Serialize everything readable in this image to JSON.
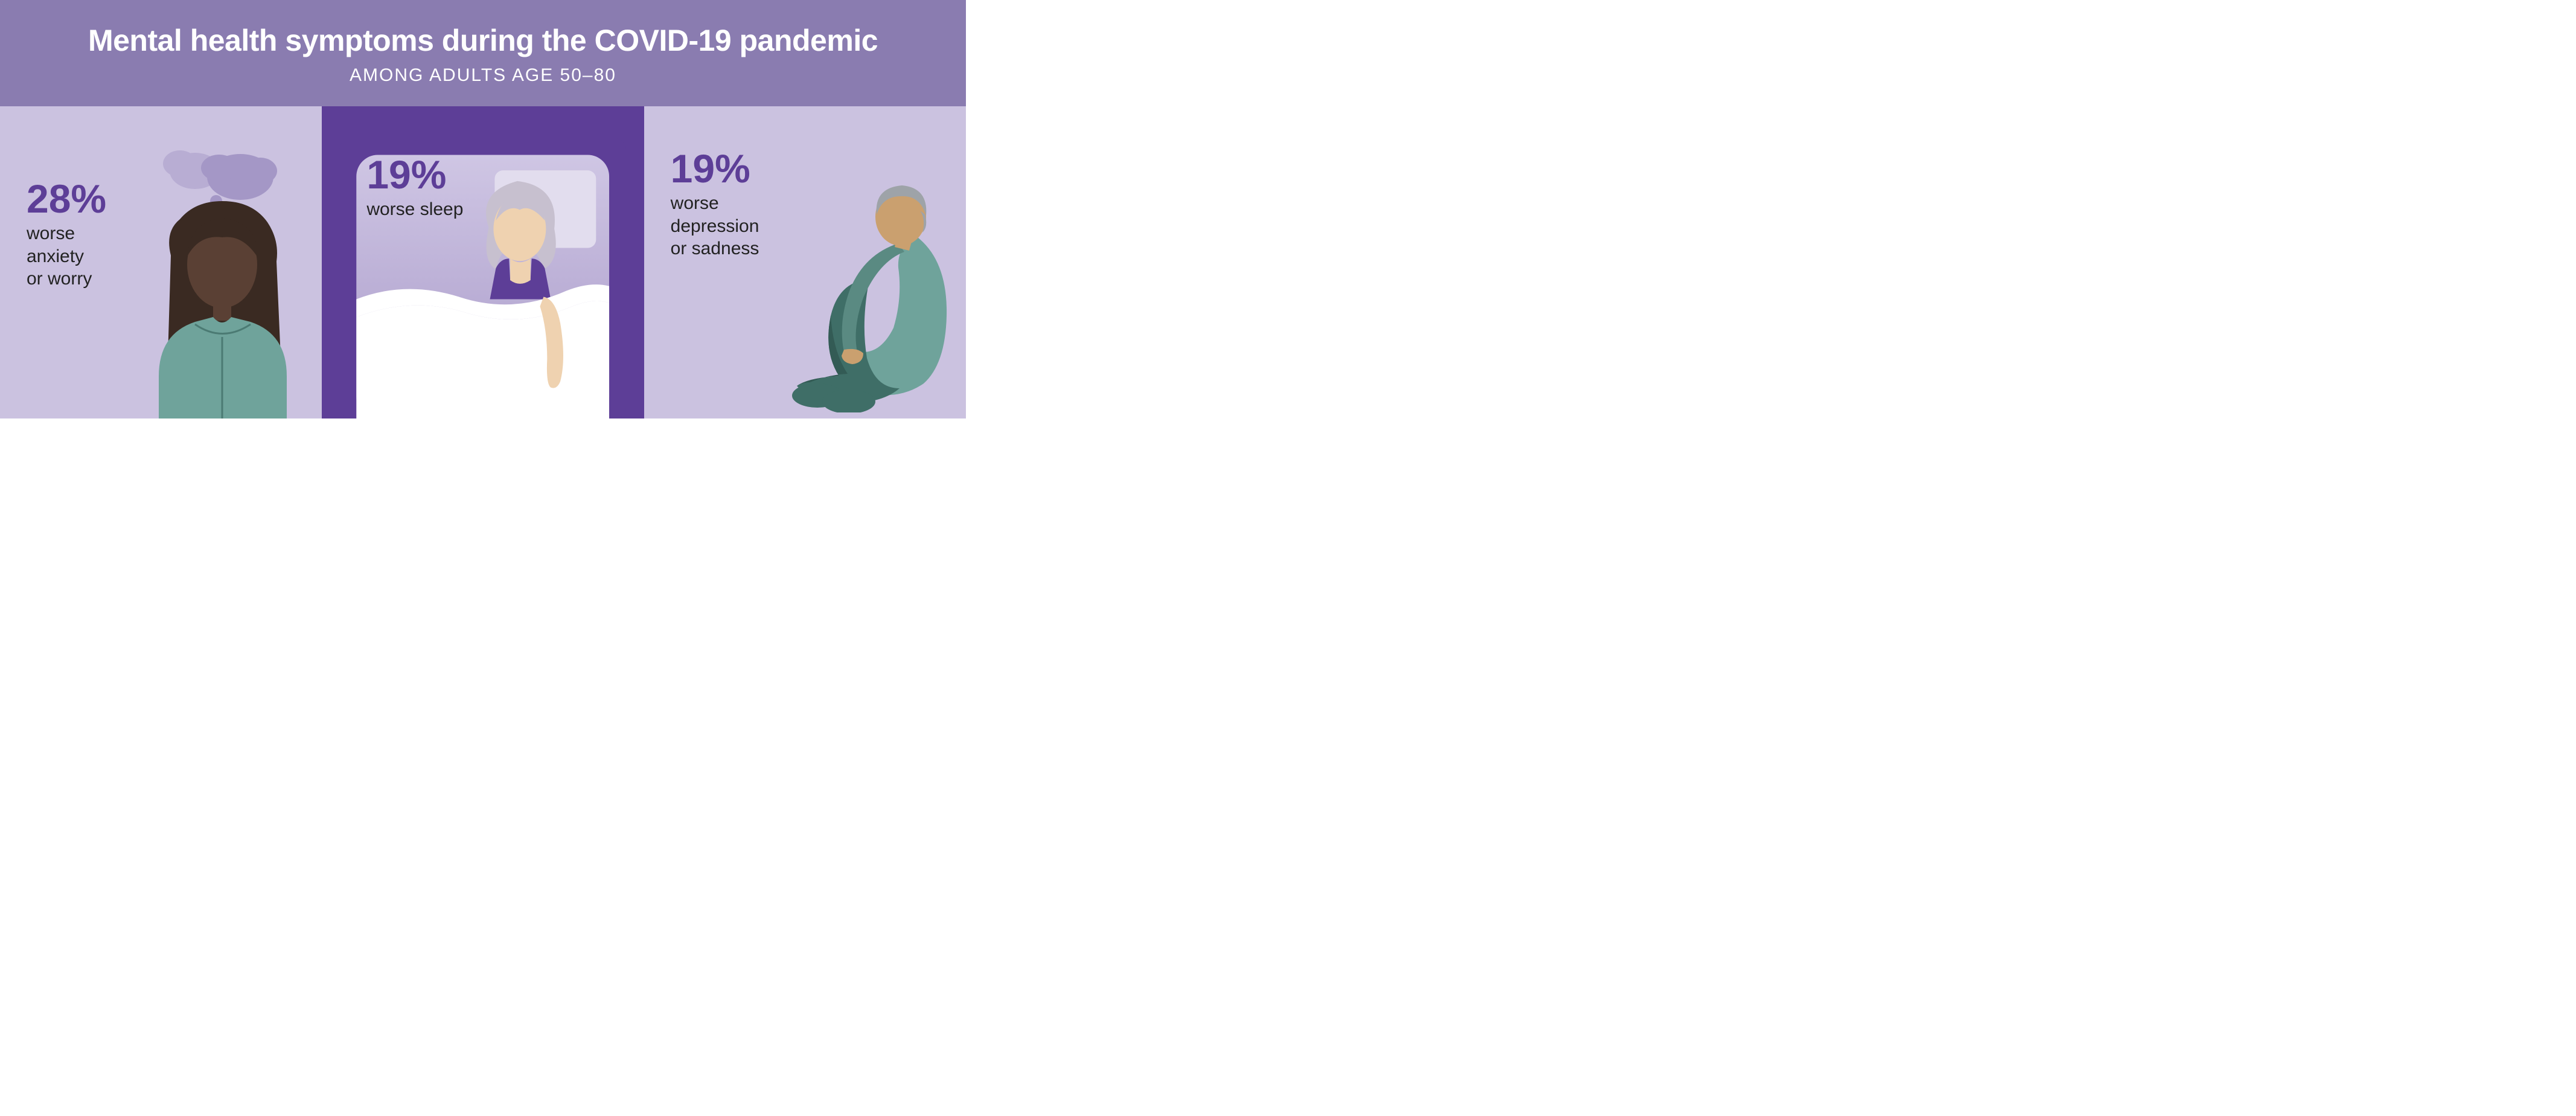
{
  "header": {
    "title": "Mental health symptoms during the COVID-19 pandemic",
    "subtitle": "AMONG ADULTS AGE 50–80",
    "bg": "#8a7cb0",
    "title_color": "#ffffff",
    "title_fontsize": 50,
    "subtitle_color": "#ffffff",
    "subtitle_fontsize": 30
  },
  "panels": [
    {
      "pct": "28%",
      "desc": "worse\nanxiety\nor worry",
      "bg": "#cbc2e0",
      "pct_color": "#5d3e97",
      "pct_fontsize": 66,
      "desc_color": "#222222",
      "desc_fontsize": 30,
      "illus": {
        "type": "worry-woman",
        "hair": "#3a2a22",
        "skin": "#5a4034",
        "shirt": "#6fa39b",
        "shirt_line": "#4b7a73",
        "cloud": "#a497c6",
        "cloud2": "#b8add3"
      }
    },
    {
      "pct": "19%",
      "desc": "worse sleep",
      "bg": "#5d3e97",
      "pct_color": "#5d3e97",
      "pct_fontsize": 66,
      "desc_color": "#222222",
      "desc_fontsize": 30,
      "illus": {
        "type": "bed",
        "bed_border": "#5d3e97",
        "bed_fill_top": "#cfc6e4",
        "bed_fill_bottom": "#a99ac9",
        "pillow": "#e2ddee",
        "sheet": "#ffffff",
        "skin": "#efd2b0",
        "hair": "#c7c0cf",
        "top": "#5d3e97"
      }
    },
    {
      "pct": "19%",
      "desc": "worse\ndepression\nor sadness",
      "bg": "#cbc2e0",
      "pct_color": "#5d3e97",
      "pct_fontsize": 66,
      "desc_color": "#222222",
      "desc_fontsize": 30,
      "illus": {
        "type": "seated-man",
        "hair": "#9ea3a8",
        "skin": "#caa06f",
        "shirt": "#6fa39b",
        "shirt_shade": "#5a8a82",
        "pants": "#3f6e67",
        "pants_shade": "#335b55",
        "shoes": "#3f6e67"
      }
    }
  ]
}
